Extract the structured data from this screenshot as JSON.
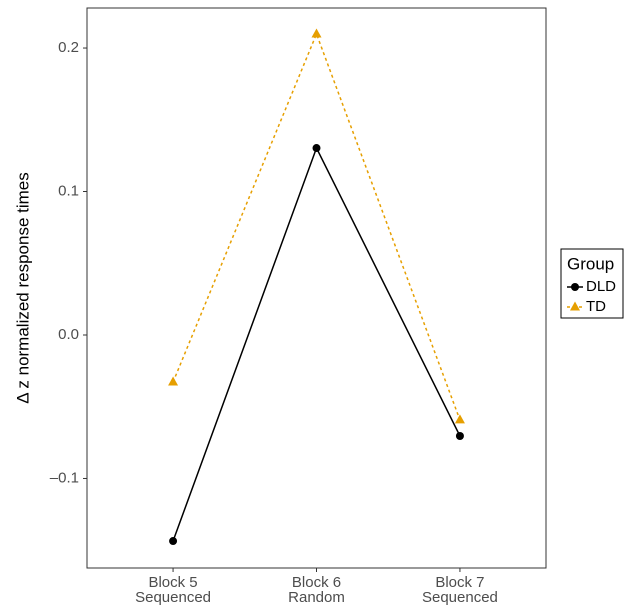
{
  "chart_data": {
    "type": "line",
    "y_label": "Δ z normalized response times",
    "categories": [
      [
        "Block 5",
        "Sequenced"
      ],
      [
        "Block 6",
        "Random"
      ],
      [
        "Block 7",
        "Sequenced"
      ]
    ],
    "series": [
      {
        "name": "DLD",
        "color": "#000000",
        "marker": "circle",
        "dash": "none",
        "values": [
          -0.1436,
          0.1303,
          -0.0704
        ]
      },
      {
        "name": "TD",
        "color": "#e69f00",
        "marker": "triangle",
        "dash": "3,3",
        "values": [
          -0.0328,
          0.2098,
          -0.0592
        ]
      }
    ],
    "ylim": [
      -0.1624,
      0.2279
    ],
    "yticks": [
      {
        "value": -0.1,
        "label": "–0.1"
      },
      {
        "value": 0,
        "label": "0.0"
      },
      0.1,
      0.2
    ],
    "legend_title": "Group",
    "legend_position": "right"
  }
}
